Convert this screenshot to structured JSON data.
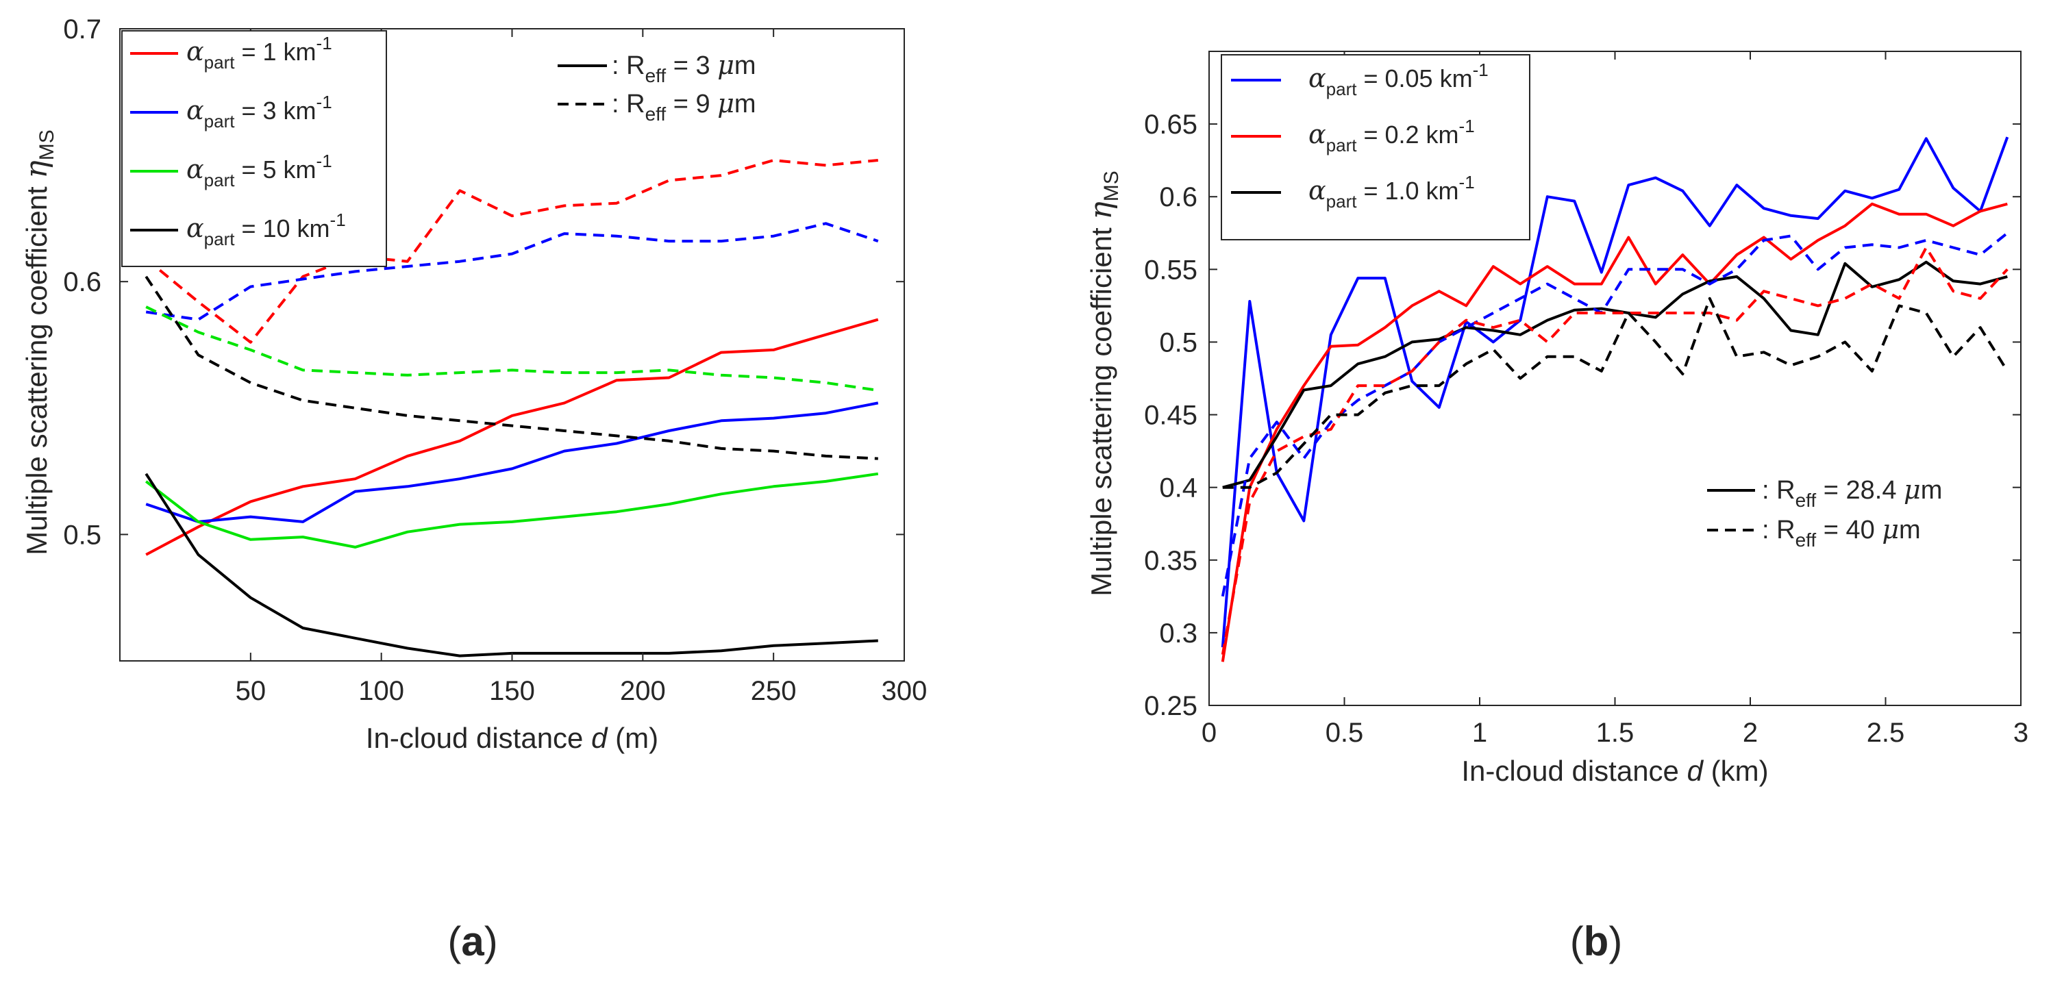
{
  "chart_data": [
    {
      "type": "line",
      "panel_label": "(a)",
      "xlabel": "In-cloud distance",
      "xlabel_symbol": "d",
      "xlabel_unit": "(m)",
      "ylabel": "Multiple scattering coefficient",
      "ylabel_symbol": "η",
      "ylabel_sub": "MS",
      "xlim": [
        0,
        300
      ],
      "ylim": [
        0.45,
        0.7
      ],
      "xticks": [
        50,
        100,
        150,
        200,
        250,
        300
      ],
      "xtick_labels": [
        "50",
        "100",
        "150",
        "200",
        "250",
        "300"
      ],
      "yticks": [
        0.5,
        0.6,
        0.7
      ],
      "ytick_labels": [
        "0.5",
        "0.6",
        "0.7"
      ],
      "color_legend": [
        {
          "sym": "α",
          "sub": "part",
          "text": " = 1 km",
          "sup": "-1",
          "color": "#ff0000"
        },
        {
          "sym": "α",
          "sub": "part",
          "text": " = 3 km",
          "sup": "-1",
          "color": "#0000ff"
        },
        {
          "sym": "α",
          "sub": "part",
          "text": " = 5 km",
          "sup": "-1",
          "color": "#00e400"
        },
        {
          "sym": "α",
          "sub": "part",
          "text": " = 10 km",
          "sup": "-1",
          "color": "#000000"
        }
      ],
      "style_legend": [
        {
          "style": "solid",
          "prefix": ": R",
          "sub": "eff",
          "text": " = 3 ",
          "mu": "μ",
          "unit": "m"
        },
        {
          "style": "dashed",
          "prefix": ": R",
          "sub": "eff",
          "text": " = 9 ",
          "mu": "μ",
          "unit": "m"
        }
      ],
      "x": [
        10,
        30,
        50,
        70,
        90,
        110,
        130,
        150,
        170,
        190,
        210,
        230,
        250,
        270,
        290
      ],
      "series": [
        {
          "name": "1 km-1, 3 um",
          "color": "#ff0000",
          "style": "solid",
          "values": [
            0.492,
            0.503,
            0.513,
            0.519,
            0.522,
            0.531,
            0.537,
            0.547,
            0.552,
            0.561,
            0.562,
            0.572,
            0.573,
            0.579,
            0.585
          ]
        },
        {
          "name": "3 km-1, 3 um",
          "color": "#0000ff",
          "style": "solid",
          "values": [
            0.512,
            0.505,
            0.507,
            0.505,
            0.517,
            0.519,
            0.522,
            0.526,
            0.533,
            0.536,
            0.541,
            0.545,
            0.546,
            0.548,
            0.552
          ]
        },
        {
          "name": "5 km-1, 3 um",
          "color": "#00e400",
          "style": "solid",
          "values": [
            0.521,
            0.505,
            0.498,
            0.499,
            0.495,
            0.501,
            0.504,
            0.505,
            0.507,
            0.509,
            0.512,
            0.516,
            0.519,
            0.521,
            0.524
          ]
        },
        {
          "name": "10 km-1, 3 um",
          "color": "#000000",
          "style": "solid",
          "values": [
            0.524,
            0.492,
            0.475,
            0.463,
            0.459,
            0.455,
            0.452,
            0.453,
            0.453,
            0.453,
            0.453,
            0.454,
            0.456,
            0.457,
            0.458
          ]
        },
        {
          "name": "1 km-1, 9 um",
          "color": "#ff0000",
          "style": "dashed",
          "values": [
            0.609,
            0.592,
            0.576,
            0.602,
            0.61,
            0.608,
            0.636,
            0.626,
            0.63,
            0.631,
            0.64,
            0.642,
            0.648,
            0.646,
            0.648
          ]
        },
        {
          "name": "3 km-1, 9 um",
          "color": "#0000ff",
          "style": "dashed",
          "values": [
            0.588,
            0.585,
            0.598,
            0.601,
            0.604,
            0.606,
            0.608,
            0.611,
            0.619,
            0.618,
            0.616,
            0.616,
            0.618,
            0.623,
            0.616
          ]
        },
        {
          "name": "5 km-1, 9 um",
          "color": "#00e400",
          "style": "dashed",
          "values": [
            0.59,
            0.58,
            0.573,
            0.565,
            0.564,
            0.563,
            0.564,
            0.565,
            0.564,
            0.564,
            0.565,
            0.563,
            0.562,
            0.56,
            0.557
          ]
        },
        {
          "name": "10 km-1, 9 um",
          "color": "#000000",
          "style": "dashed",
          "values": [
            0.602,
            0.571,
            0.56,
            0.553,
            0.55,
            0.547,
            0.545,
            0.543,
            0.541,
            0.539,
            0.537,
            0.534,
            0.533,
            0.531,
            0.53
          ]
        }
      ]
    },
    {
      "type": "line",
      "panel_label": "(b)",
      "xlabel": "In-cloud distance",
      "xlabel_symbol": "d",
      "xlabel_unit": "(km)",
      "ylabel": "Multiple scattering coefficient",
      "ylabel_symbol": "η",
      "ylabel_sub": "MS",
      "xlim": [
        0,
        3
      ],
      "ylim": [
        0.25,
        0.7
      ],
      "xticks": [
        0,
        0.5,
        1,
        1.5,
        2,
        2.5,
        3
      ],
      "xtick_labels": [
        "0",
        "0.5",
        "1",
        "1.5",
        "2",
        "2.5",
        "3"
      ],
      "yticks": [
        0.25,
        0.3,
        0.35,
        0.4,
        0.45,
        0.5,
        0.55,
        0.6,
        0.65
      ],
      "ytick_labels": [
        "0.25",
        "0.3",
        "0.35",
        "0.4",
        "0.45",
        "0.5",
        "0.55",
        "0.6",
        "0.65"
      ],
      "color_legend": [
        {
          "sym": "α",
          "sub": "part",
          "text": " = 0.05 km",
          "sup": "-1",
          "color": "#0000ff"
        },
        {
          "sym": "α",
          "sub": "part",
          "text": " = 0.2 km",
          "sup": "-1",
          "color": "#ff0000"
        },
        {
          "sym": "α",
          "sub": "part",
          "text": " = 1.0 km",
          "sup": "-1",
          "color": "#000000"
        }
      ],
      "style_legend": [
        {
          "style": "solid",
          "prefix": ": R",
          "sub": "eff",
          "text": " = 28.4 ",
          "mu": "μ",
          "unit": "m"
        },
        {
          "style": "dashed",
          "prefix": ": R",
          "sub": "eff",
          "text": " = 40 ",
          "mu": "μ",
          "unit": "m"
        }
      ],
      "x": [
        0.05,
        0.15,
        0.25,
        0.35,
        0.45,
        0.55,
        0.65,
        0.75,
        0.85,
        0.95,
        1.05,
        1.15,
        1.25,
        1.35,
        1.45,
        1.55,
        1.65,
        1.75,
        1.85,
        1.95,
        2.05,
        2.15,
        2.25,
        2.35,
        2.45,
        2.55,
        2.65,
        2.75,
        2.85,
        2.95
      ],
      "series": [
        {
          "name": "0.05 km-1, 28.4 um",
          "color": "#0000ff",
          "style": "solid",
          "values": [
            0.29,
            0.528,
            0.41,
            0.377,
            0.505,
            0.544,
            0.544,
            0.473,
            0.455,
            0.514,
            0.5,
            0.515,
            0.6,
            0.597,
            0.548,
            0.608,
            0.613,
            0.604,
            0.58,
            0.608,
            0.592,
            0.587,
            0.585,
            0.604,
            0.599,
            0.605,
            0.64,
            0.606,
            0.59,
            0.641
          ]
        },
        {
          "name": "0.2 km-1, 28.4 um",
          "color": "#ff0000",
          "style": "solid",
          "values": [
            0.28,
            0.4,
            0.44,
            0.47,
            0.497,
            0.498,
            0.51,
            0.525,
            0.535,
            0.525,
            0.552,
            0.54,
            0.552,
            0.54,
            0.54,
            0.572,
            0.54,
            0.56,
            0.54,
            0.56,
            0.572,
            0.557,
            0.57,
            0.58,
            0.595,
            0.588,
            0.588,
            0.58,
            0.59,
            0.595
          ]
        },
        {
          "name": "1.0 km-1, 28.4 um",
          "color": "#000000",
          "style": "solid",
          "values": [
            0.4,
            0.405,
            0.435,
            0.467,
            0.47,
            0.485,
            0.49,
            0.5,
            0.502,
            0.51,
            0.508,
            0.505,
            0.515,
            0.522,
            0.523,
            0.52,
            0.517,
            0.533,
            0.542,
            0.545,
            0.53,
            0.508,
            0.505,
            0.554,
            0.538,
            0.543,
            0.555,
            0.542,
            0.54,
            0.545
          ]
        },
        {
          "name": "0.05 km-1, 40 um",
          "color": "#0000ff",
          "style": "dashed",
          "values": [
            0.325,
            0.42,
            0.445,
            0.42,
            0.445,
            0.46,
            0.47,
            0.48,
            0.5,
            0.51,
            0.52,
            0.53,
            0.54,
            0.53,
            0.52,
            0.55,
            0.55,
            0.55,
            0.54,
            0.55,
            0.57,
            0.573,
            0.55,
            0.565,
            0.567,
            0.565,
            0.57,
            0.565,
            0.56,
            0.575
          ]
        },
        {
          "name": "0.2 km-1, 40 um",
          "color": "#ff0000",
          "style": "dashed",
          "values": [
            0.285,
            0.39,
            0.425,
            0.435,
            0.44,
            0.47,
            0.47,
            0.48,
            0.5,
            0.515,
            0.51,
            0.515,
            0.5,
            0.52,
            0.52,
            0.52,
            0.52,
            0.52,
            0.52,
            0.515,
            0.535,
            0.53,
            0.525,
            0.53,
            0.54,
            0.53,
            0.565,
            0.535,
            0.53,
            0.55
          ]
        },
        {
          "name": "1.0 km-1, 40 um",
          "color": "#000000",
          "style": "dashed",
          "values": [
            0.4,
            0.4,
            0.41,
            0.43,
            0.45,
            0.45,
            0.465,
            0.47,
            0.47,
            0.485,
            0.495,
            0.475,
            0.49,
            0.49,
            0.48,
            0.52,
            0.5,
            0.478,
            0.53,
            0.49,
            0.493,
            0.484,
            0.49,
            0.5,
            0.48,
            0.525,
            0.52,
            0.49,
            0.51,
            0.48
          ]
        }
      ]
    }
  ]
}
